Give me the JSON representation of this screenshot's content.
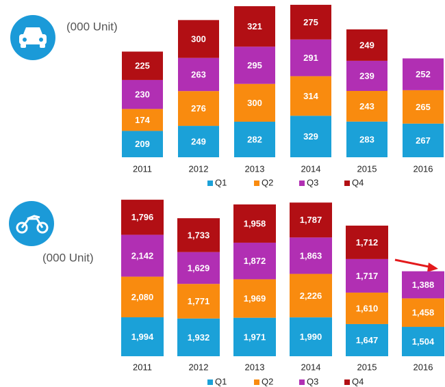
{
  "chart_data": [
    {
      "type": "stacked_bar",
      "unit_label": "(000 Unit)",
      "categories": [
        "2011",
        "2012",
        "2013",
        "2014",
        "2015",
        "2016"
      ],
      "series": [
        {
          "name": "Q1",
          "color": "#1ba1d8",
          "values": [
            209,
            249,
            282,
            329,
            283,
            267
          ]
        },
        {
          "name": "Q2",
          "color": "#f98b0f",
          "values": [
            174,
            276,
            300,
            314,
            243,
            265
          ]
        },
        {
          "name": "Q3",
          "color": "#b12fb3",
          "values": [
            230,
            263,
            295,
            291,
            239,
            252
          ]
        },
        {
          "name": "Q4",
          "color": "#b20f14",
          "values": [
            225,
            300,
            321,
            275,
            249,
            null
          ]
        }
      ],
      "ylim": [
        0,
        1220
      ]
    },
    {
      "type": "stacked_bar",
      "unit_label": "(000 Unit)",
      "categories": [
        "2011",
        "2012",
        "2013",
        "2014",
        "2015",
        "2016"
      ],
      "series": [
        {
          "name": "Q1",
          "color": "#1ba1d8",
          "values": [
            1994,
            1932,
            1971,
            1990,
            1647,
            1504
          ],
          "value_labels": [
            "1,994",
            "1,932",
            "1,971",
            "1,990",
            "1,647",
            "1,504"
          ]
        },
        {
          "name": "Q2",
          "color": "#f98b0f",
          "values": [
            2080,
            1771,
            1969,
            2226,
            1610,
            1458
          ],
          "value_labels": [
            "2,080",
            "1,771",
            "1,969",
            "2,226",
            "1,610",
            "1,458"
          ]
        },
        {
          "name": "Q3",
          "color": "#b12fb3",
          "values": [
            2142,
            1629,
            1872,
            1863,
            1717,
            1388
          ],
          "value_labels": [
            "2,142",
            "1,629",
            "1,872",
            "1,863",
            "1,717",
            "1,388"
          ]
        },
        {
          "name": "Q4",
          "color": "#b20f14",
          "values": [
            1796,
            1733,
            1958,
            1787,
            1712,
            null
          ],
          "value_labels": [
            "1,796",
            "1,733",
            "1,958",
            "1,787",
            "1,712",
            null
          ]
        }
      ],
      "ylim": [
        0,
        8050
      ]
    }
  ]
}
